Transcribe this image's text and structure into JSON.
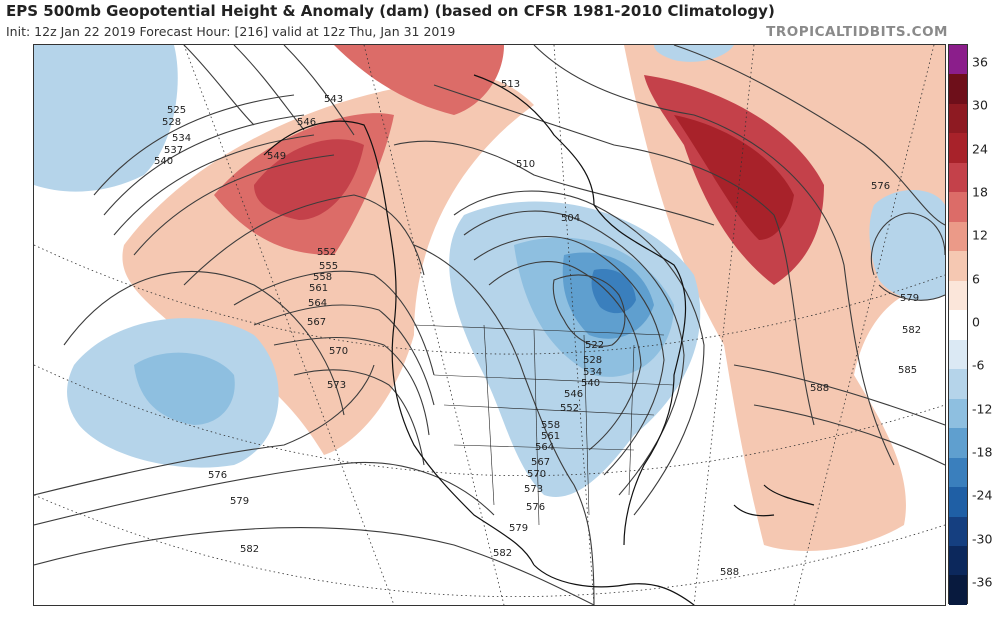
{
  "title": "EPS 500mb Geopotential Height & Anomaly (dam) (based on CFSR 1981-2010 Climatology)",
  "subtitle": "Init: 12z Jan 22 2019   Forecast Hour: [216]   valid at 12z Thu, Jan 31 2019",
  "brand": "TROPICALTIDBITS.COM",
  "colorbar": {
    "labels": [
      "36",
      "30",
      "24",
      "18",
      "12",
      "6",
      "0",
      "-6",
      "-12",
      "-18",
      "-24",
      "-30",
      "-36"
    ],
    "colors": [
      "#8b1e8b",
      "#6e0f1a",
      "#8e1a22",
      "#a8222a",
      "#c4414a",
      "#dc6c68",
      "#eb9a88",
      "#f5c8b2",
      "#fbe6da",
      "#ffffff",
      "#dbe9f4",
      "#b5d4ea",
      "#8ebfe0",
      "#5f9fcf",
      "#3a7fbd",
      "#1f5fa5",
      "#153f80",
      "#0c285c",
      "#081a3e"
    ]
  },
  "contour_labels": [
    "525",
    "528",
    "534",
    "537",
    "540",
    "543",
    "546",
    "549",
    "552",
    "555",
    "558",
    "561",
    "564",
    "567",
    "570",
    "573",
    "576",
    "579",
    "582",
    "585",
    "588",
    "510",
    "513",
    "504",
    "522",
    "528",
    "534",
    "540",
    "546",
    "552",
    "558",
    "561",
    "564",
    "567",
    "570",
    "573",
    "576",
    "579",
    "582",
    "588",
    "576",
    "579",
    "582"
  ]
}
